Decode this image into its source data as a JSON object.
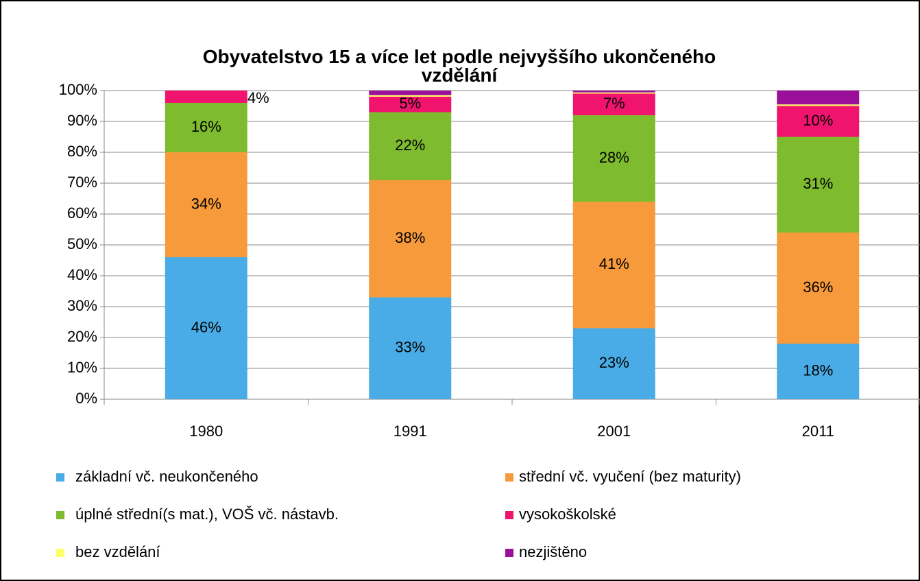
{
  "chart_data": {
    "type": "stacked_bar",
    "title": "Obyvatelstvo 15  a více let podle nejvyššího ukončeného vzdělání",
    "categories": [
      "1980",
      "1991",
      "2001",
      "2011"
    ],
    "series": [
      {
        "name": "základní vč.  neukončeného",
        "color": "#4aace6",
        "values": [
          46,
          33,
          23,
          18
        ],
        "value_labels": [
          "46%",
          "33%",
          "23%",
          "18%"
        ]
      },
      {
        "name": "střední vč. vyučení (bez maturity)",
        "color": "#f79a3b",
        "values": [
          34,
          38,
          41,
          36
        ],
        "value_labels": [
          "34%",
          "38%",
          "41%",
          "36%"
        ]
      },
      {
        "name": "úplné střední(s mat.), VOŠ vč. nástavb.",
        "color": "#7ebb2e",
        "values": [
          16,
          22,
          28,
          31
        ],
        "value_labels": [
          "16%",
          "22%",
          "28%",
          "31%"
        ]
      },
      {
        "name": "vysokoškolské",
        "color": "#f0146e",
        "values": [
          4,
          5,
          7,
          10
        ],
        "value_labels": [
          "4%",
          "5%",
          "7%",
          "10%"
        ]
      },
      {
        "name": "bez vzdělání",
        "color": "#ffff66",
        "values": [
          0,
          0.5,
          0.4,
          0.5
        ]
      },
      {
        "name": "nezjištěno",
        "color": "#9b109b",
        "values": [
          0,
          1.5,
          0.6,
          4.5
        ]
      }
    ],
    "ylim": [
      0,
      100
    ],
    "yticks": [
      {
        "value": 0,
        "label": "0%"
      },
      {
        "value": 10,
        "label": "10%"
      },
      {
        "value": 20,
        "label": "20%"
      },
      {
        "value": 30,
        "label": "30%"
      },
      {
        "value": 40,
        "label": "40%"
      },
      {
        "value": 50,
        "label": "50%"
      },
      {
        "value": 60,
        "label": "60%"
      },
      {
        "value": 70,
        "label": "70%"
      },
      {
        "value": 80,
        "label": "80%"
      },
      {
        "value": 90,
        "label": "90%"
      },
      {
        "value": 100,
        "label": "100%"
      }
    ],
    "grid": true,
    "legend": "bottom"
  }
}
